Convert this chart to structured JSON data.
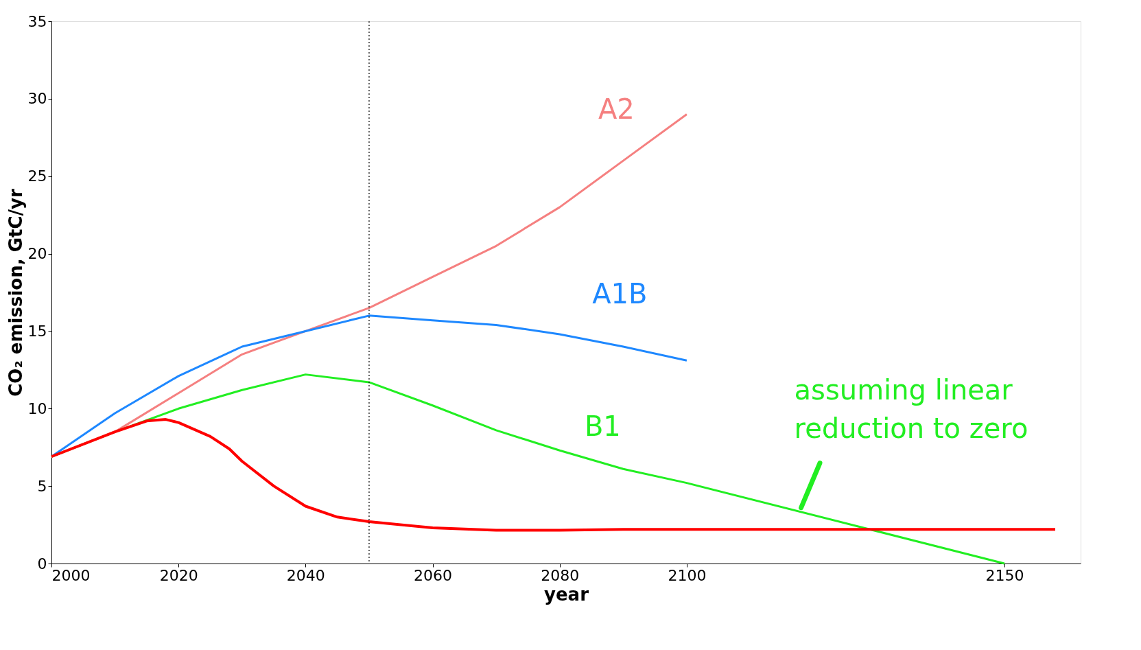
{
  "chart_data": {
    "type": "line",
    "xlabel": "year",
    "ylabel": "CO₂ emission, GtC/yr",
    "xlim": [
      2000,
      2162
    ],
    "xticks": [
      2000,
      2020,
      2040,
      2060,
      2080,
      2100,
      2150
    ],
    "ylim": [
      0,
      35
    ],
    "yticks": [
      0,
      5,
      10,
      15,
      20,
      25,
      30,
      35
    ],
    "grid": false,
    "series": [
      {
        "name": "A2",
        "color": "#f58080",
        "x": [
          2000,
          2010,
          2020,
          2030,
          2040,
          2050,
          2060,
          2070,
          2080,
          2090,
          2100
        ],
        "values": [
          6.9,
          8.5,
          11.0,
          13.5,
          15.0,
          16.5,
          18.5,
          20.5,
          23.0,
          26.0,
          29.0
        ]
      },
      {
        "name": "A1B",
        "color": "#1e88ff",
        "x": [
          2000,
          2010,
          2020,
          2030,
          2040,
          2050,
          2060,
          2070,
          2080,
          2090,
          2100
        ],
        "values": [
          6.9,
          9.7,
          12.1,
          14.0,
          15.0,
          16.0,
          15.7,
          15.4,
          14.8,
          14.0,
          13.1
        ]
      },
      {
        "name": "B1",
        "color": "#22ee22",
        "x": [
          2000,
          2010,
          2020,
          2030,
          2040,
          2050,
          2060,
          2070,
          2080,
          2090,
          2100,
          2150
        ],
        "values": [
          6.9,
          8.5,
          10.0,
          11.2,
          12.2,
          11.7,
          10.2,
          8.6,
          7.3,
          6.1,
          5.2,
          0
        ]
      },
      {
        "color": "#ff0000",
        "x": [
          2000,
          2010,
          2015,
          2018,
          2020,
          2025,
          2028,
          2030,
          2035,
          2040,
          2045,
          2050,
          2060,
          2070,
          2080,
          2090,
          2100,
          2158
        ],
        "values": [
          6.9,
          8.5,
          9.2,
          9.3,
          9.1,
          8.2,
          7.4,
          6.6,
          5.0,
          3.7,
          3.0,
          2.7,
          2.3,
          2.15,
          2.15,
          2.2,
          2.2,
          2.2
        ]
      }
    ],
    "ref_lines": [
      {
        "axis": "x",
        "value": 2050,
        "line_style": "dotted",
        "color": "#000000"
      }
    ],
    "annotations": [
      {
        "text": "assuming linear reduction to zero",
        "x": 2118,
        "y": 3.6
      }
    ]
  }
}
